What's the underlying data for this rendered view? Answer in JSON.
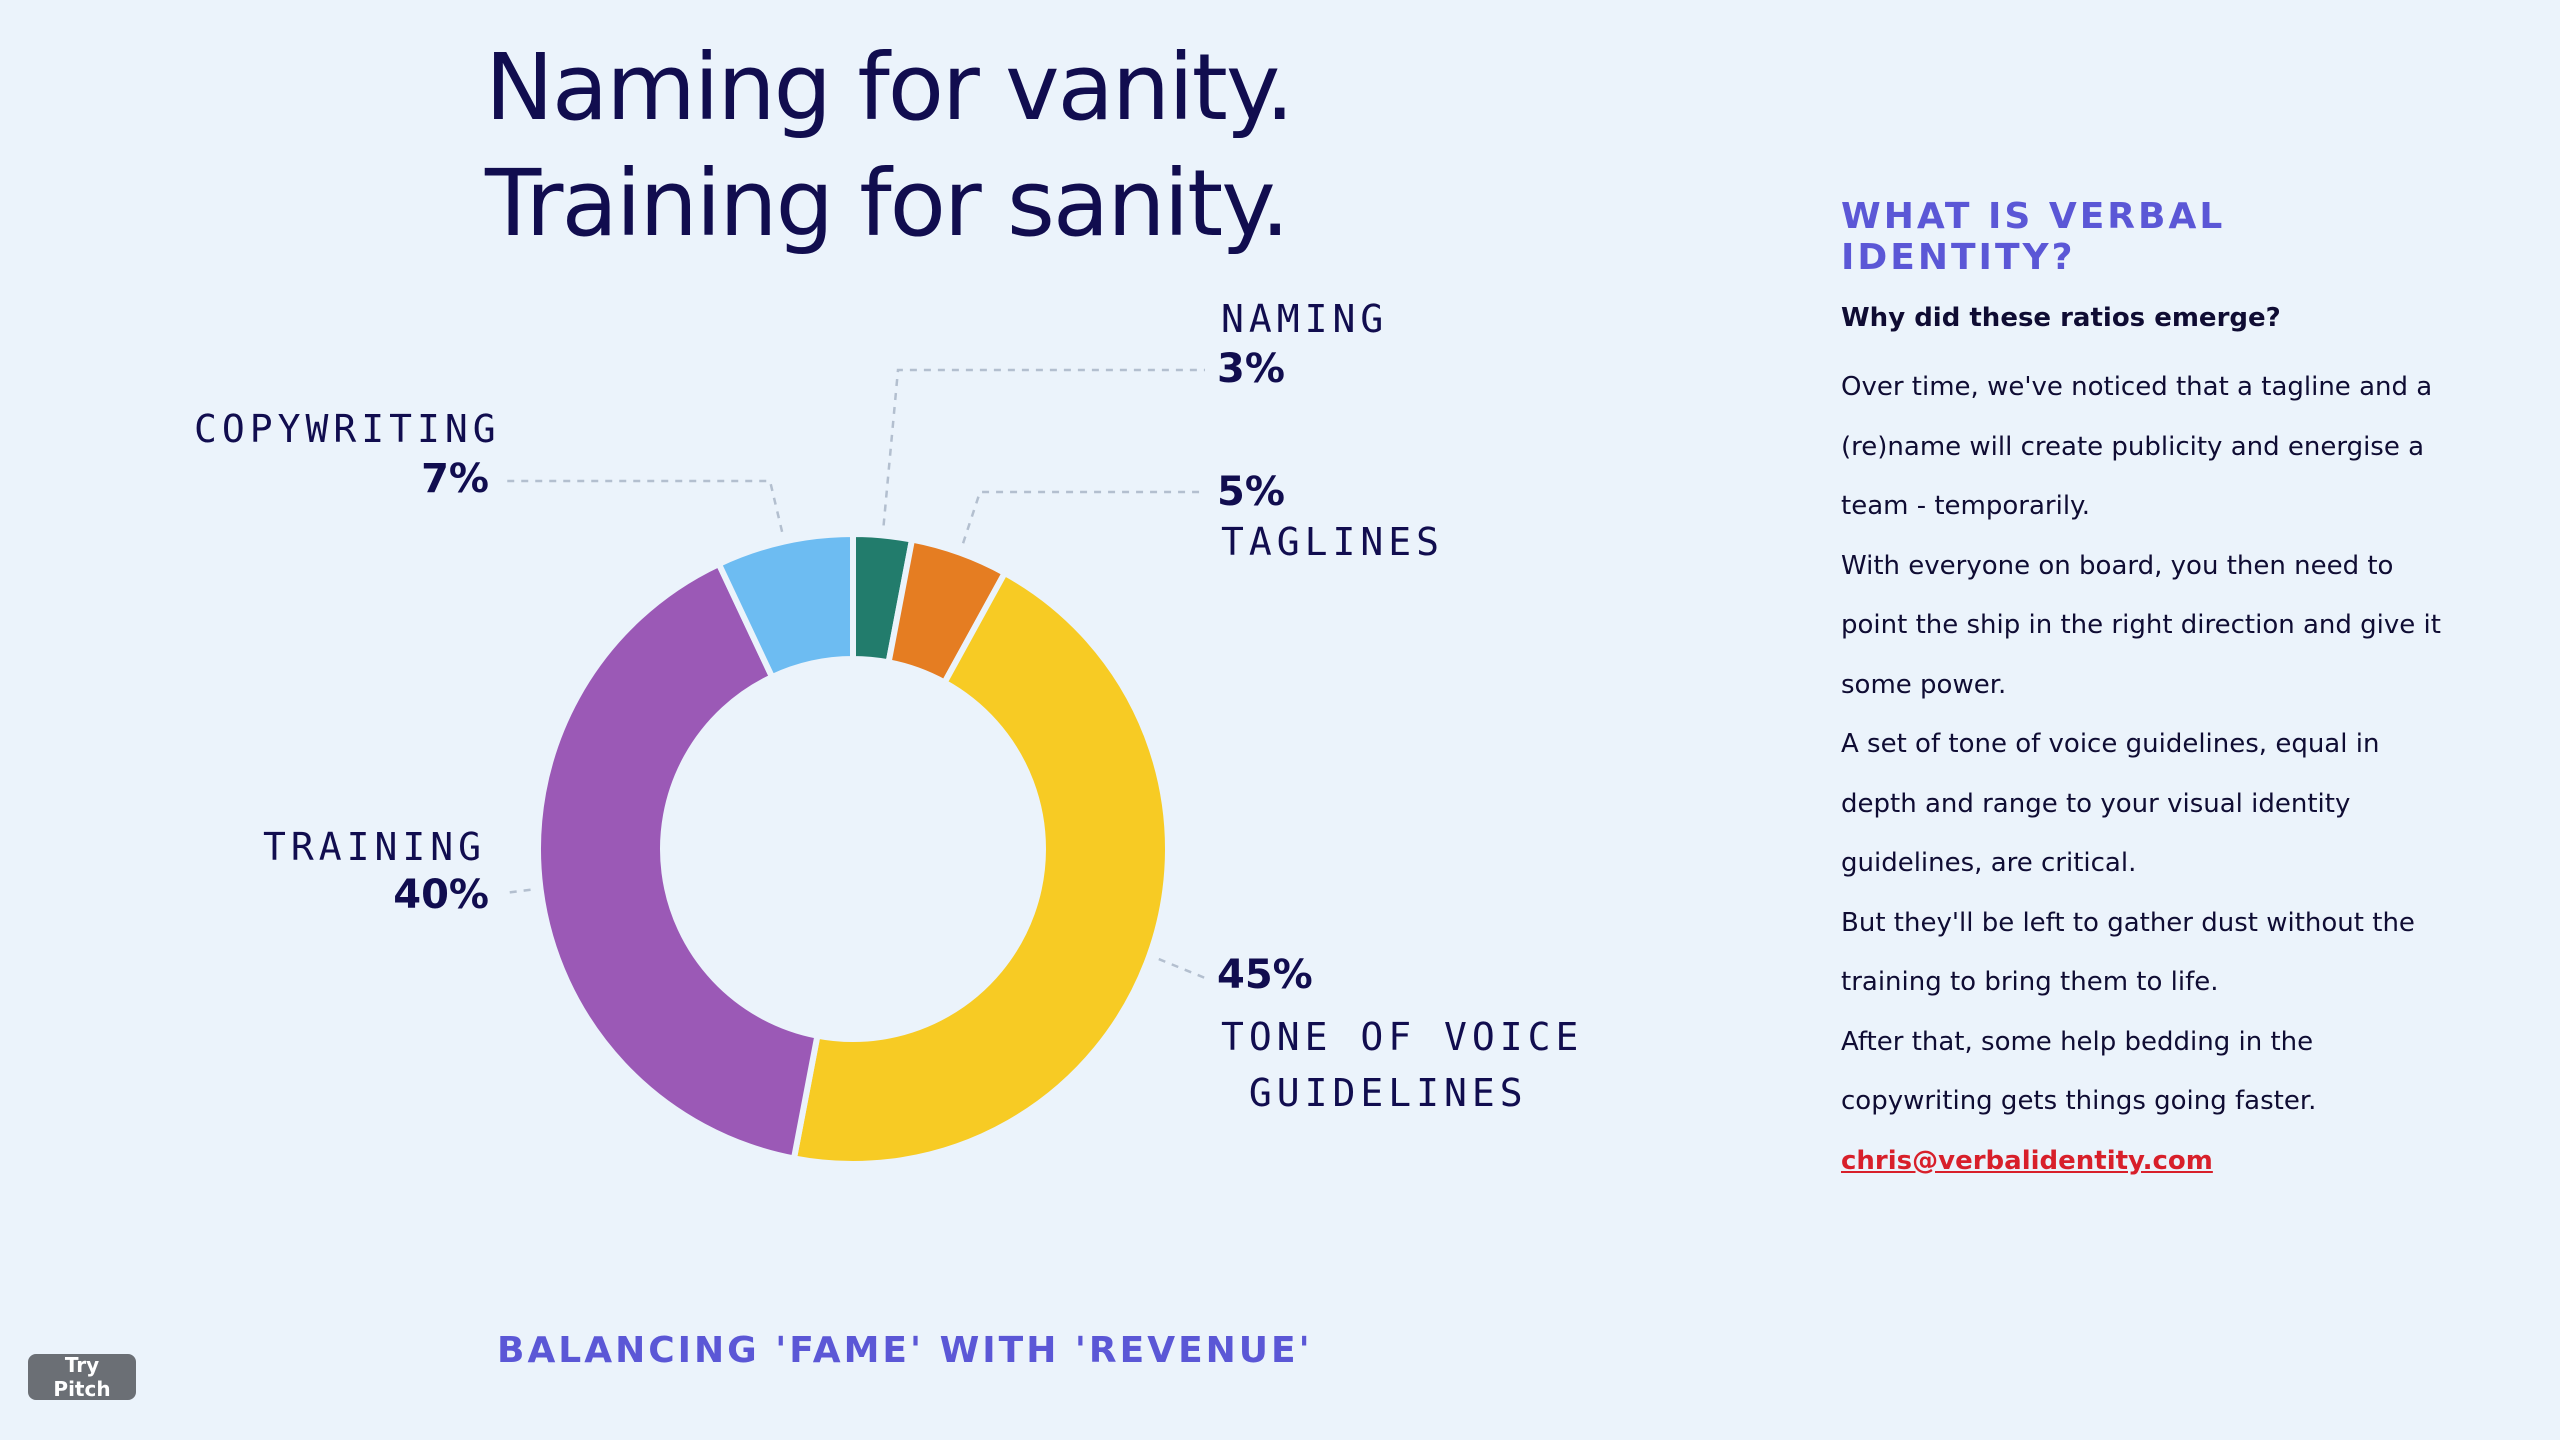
{
  "title": {
    "line1": "Naming for vanity.",
    "line2": "Training for sanity."
  },
  "chart_data": {
    "type": "pie",
    "style": "donut",
    "slices": [
      {
        "label": "NAMING",
        "value": 3,
        "display": "3%",
        "color": "#227c6c"
      },
      {
        "label": "TAGLINES",
        "value": 5,
        "display": "5%",
        "color": "#e57d22"
      },
      {
        "label": "TONE OF VOICE\n GUIDELINES",
        "value": 45,
        "display": "45%",
        "color": "#f7cb24"
      },
      {
        "label": "TRAINING",
        "value": 40,
        "display": "40%",
        "color": "#9b59b6"
      },
      {
        "label": "COPYWRITING",
        "value": 7,
        "display": "7%",
        "color": "#6dbcf2"
      }
    ]
  },
  "aside": {
    "heading": "WHAT IS VERBAL IDENTITY?",
    "question": "Why did these ratios emerge?",
    "paragraphs": [
      "Over time, we've noticed that a tagline and a (re)name will create publicity and energise a team -  temporarily.",
      "With everyone on board, you then need to point the ship in the right direction and give it some power.",
      "A set of tone of voice guidelines, equal in depth and range to your visual identity guidelines, are critical.",
      "But they'll be left to gather dust without the training to bring them to life.",
      "After that, some help bedding in the copywriting gets things going faster."
    ],
    "email": "chris@verbalidentity.com"
  },
  "footer": {
    "subtitle": "BALANCING 'FAME' WITH 'REVENUE'",
    "button": "Try Pitch"
  }
}
